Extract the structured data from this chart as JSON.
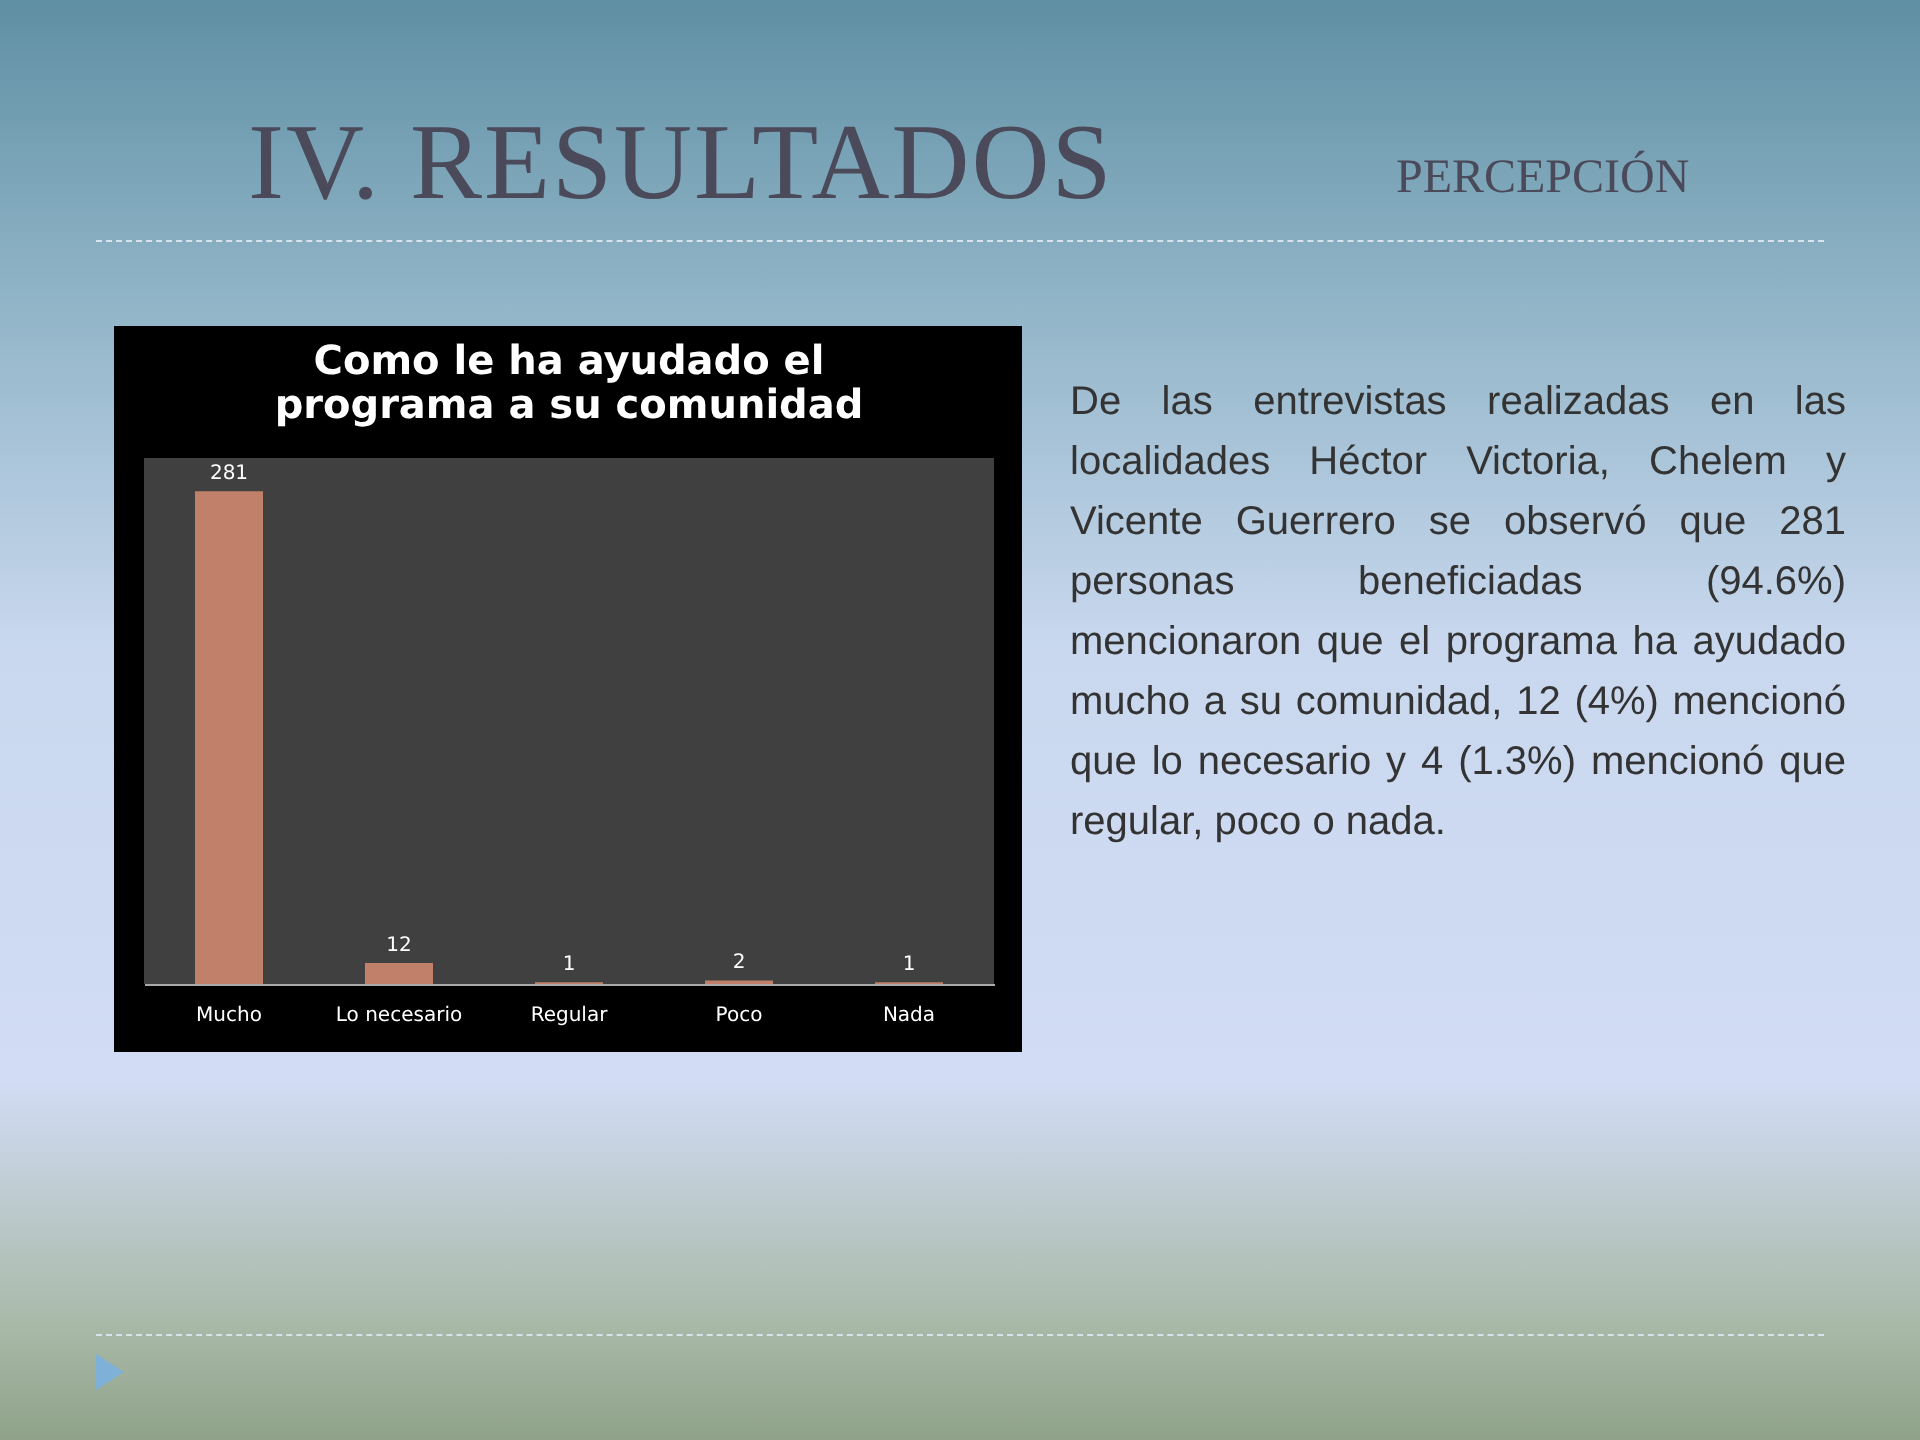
{
  "chart_data": {
    "type": "bar",
    "title": "Como le ha ayudado el programa a su comunidad",
    "categories": [
      "Mucho",
      "Lo necesario",
      "Regular",
      "Poco",
      "Nada"
    ],
    "values": [
      281,
      12,
      1,
      2,
      1
    ],
    "color": "#c0806a",
    "data_labels": true,
    "annotations": [
      "IV. RESULTADOS",
      "PERCEPCIÓN",
      "De las entrevistas realizadas en las localidades Héctor Victoria, Chelem y Vicente Guerrero se observó que 281 personas beneficiadas (94.6%) mencionaron que el programa ha ayudado mucho a su comunidad, 12 (4%) mencionó que lo necesario y 4 (1.3%) mencionó  que regular, poco o nada."
    ]
  }
}
